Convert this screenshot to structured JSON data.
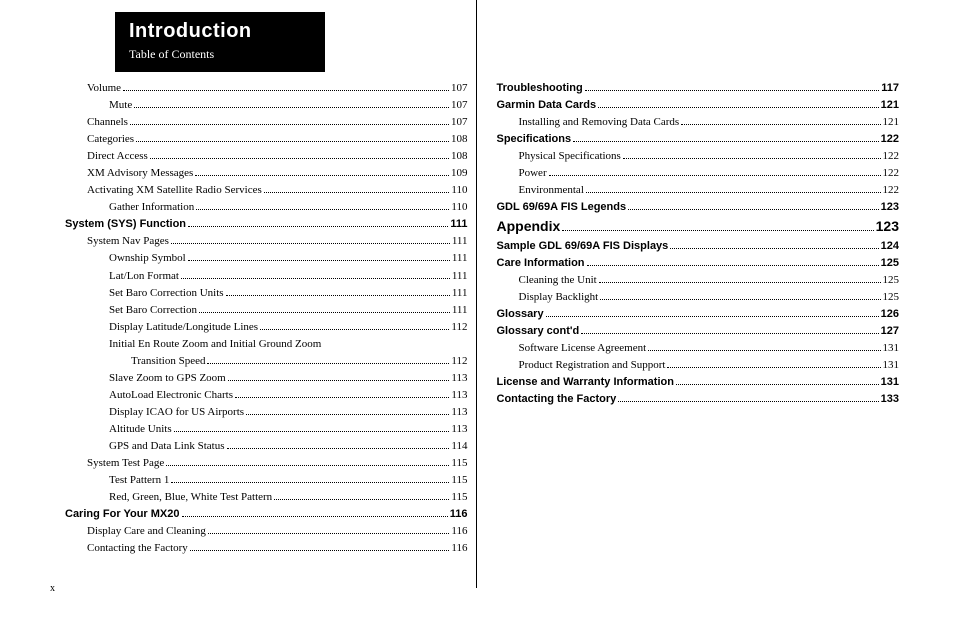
{
  "header": {
    "title": "Introduction",
    "subtitle": "Table of Contents"
  },
  "page_number": "x",
  "left": [
    {
      "label": "Volume",
      "page": "107",
      "indent": 1
    },
    {
      "label": "Mute",
      "page": "107",
      "indent": 2
    },
    {
      "label": "Channels",
      "page": "107",
      "indent": 1
    },
    {
      "label": "Categories",
      "page": "108",
      "indent": 1
    },
    {
      "label": "Direct Access",
      "page": "108",
      "indent": 1
    },
    {
      "label": "XM Advisory Messages",
      "page": "109",
      "indent": 1
    },
    {
      "label": "Activating XM Satellite Radio Services",
      "page": "110",
      "indent": 1
    },
    {
      "label": "Gather Information",
      "page": "110",
      "indent": 2
    },
    {
      "label": "System (SYS) Function",
      "page": "111",
      "indent": 0,
      "bold": true
    },
    {
      "label": "System Nav Pages",
      "page": "111",
      "indent": 1
    },
    {
      "label": "Ownship Symbol",
      "page": "111",
      "indent": 2
    },
    {
      "label": "Lat/Lon Format",
      "page": "111",
      "indent": 2
    },
    {
      "label": "Set Baro Correction Units",
      "page": "111",
      "indent": 2
    },
    {
      "label": "Set Baro Correction",
      "page": "111",
      "indent": 2
    },
    {
      "label": "Display Latitude/Longitude Lines",
      "page": "112",
      "indent": 2
    },
    {
      "label": "Initial En Route Zoom and Initial Ground Zoom",
      "page": "",
      "indent": 2,
      "noleader": true
    },
    {
      "label": "Transition Speed",
      "page": "112",
      "indent": 3
    },
    {
      "label": "Slave Zoom to GPS Zoom",
      "page": "113",
      "indent": 2
    },
    {
      "label": "AutoLoad Electronic Charts",
      "page": "113",
      "indent": 2
    },
    {
      "label": "Display ICAO for US Airports",
      "page": "113",
      "indent": 2
    },
    {
      "label": "Altitude Units",
      "page": "113",
      "indent": 2
    },
    {
      "label": "GPS and Data Link Status",
      "page": "114",
      "indent": 2
    },
    {
      "label": "System Test Page",
      "page": "115",
      "indent": 1
    },
    {
      "label": "Test Pattern 1",
      "page": "115",
      "indent": 2
    },
    {
      "label": "Red, Green, Blue, White Test Pattern",
      "page": "115",
      "indent": 2
    },
    {
      "label": "Caring For Your MX20",
      "page": "116",
      "indent": 0,
      "bold": true
    },
    {
      "label": "Display Care and Cleaning",
      "page": "116",
      "indent": 1
    },
    {
      "label": "Contacting the Factory",
      "page": "116",
      "indent": 1
    }
  ],
  "right": [
    {
      "label": "Troubleshooting",
      "page": "117",
      "indent": 0,
      "bold": true
    },
    {
      "label": "Garmin Data Cards",
      "page": "121",
      "indent": 0,
      "bold": true
    },
    {
      "label": "Installing and Removing Data Cards",
      "page": "121",
      "indent": 1
    },
    {
      "label": "Specifications",
      "page": "122",
      "indent": 0,
      "bold": true
    },
    {
      "label": "Physical Specifications",
      "page": "122",
      "indent": 1
    },
    {
      "label": "Power",
      "page": "122",
      "indent": 1
    },
    {
      "label": "Environmental",
      "page": "122",
      "indent": 1
    },
    {
      "label": "GDL 69/69A FIS Legends",
      "page": "123",
      "indent": 0,
      "bold": true
    },
    {
      "label": "Appendix",
      "page": "123",
      "indent": 0,
      "section": true
    },
    {
      "label": "Sample GDL 69/69A FIS Displays",
      "page": "124",
      "indent": 0,
      "bold": true
    },
    {
      "label": "Care Information",
      "page": "125",
      "indent": 0,
      "bold": true
    },
    {
      "label": "Cleaning the Unit",
      "page": "125",
      "indent": 1
    },
    {
      "label": "Display Backlight",
      "page": "125",
      "indent": 1
    },
    {
      "label": "Glossary",
      "page": "126",
      "indent": 0,
      "bold": true
    },
    {
      "label": "Glossary cont'd",
      "page": "127",
      "indent": 0,
      "bold": true
    },
    {
      "label": "Software License Agreement",
      "page": "131",
      "indent": 1
    },
    {
      "label": "Product Registration and Support",
      "page": "131",
      "indent": 1
    },
    {
      "label": "License and Warranty Information",
      "page": "131",
      "indent": 0,
      "bold": true
    },
    {
      "label": "Contacting the Factory",
      "page": "133",
      "indent": 0,
      "bold": true
    }
  ]
}
